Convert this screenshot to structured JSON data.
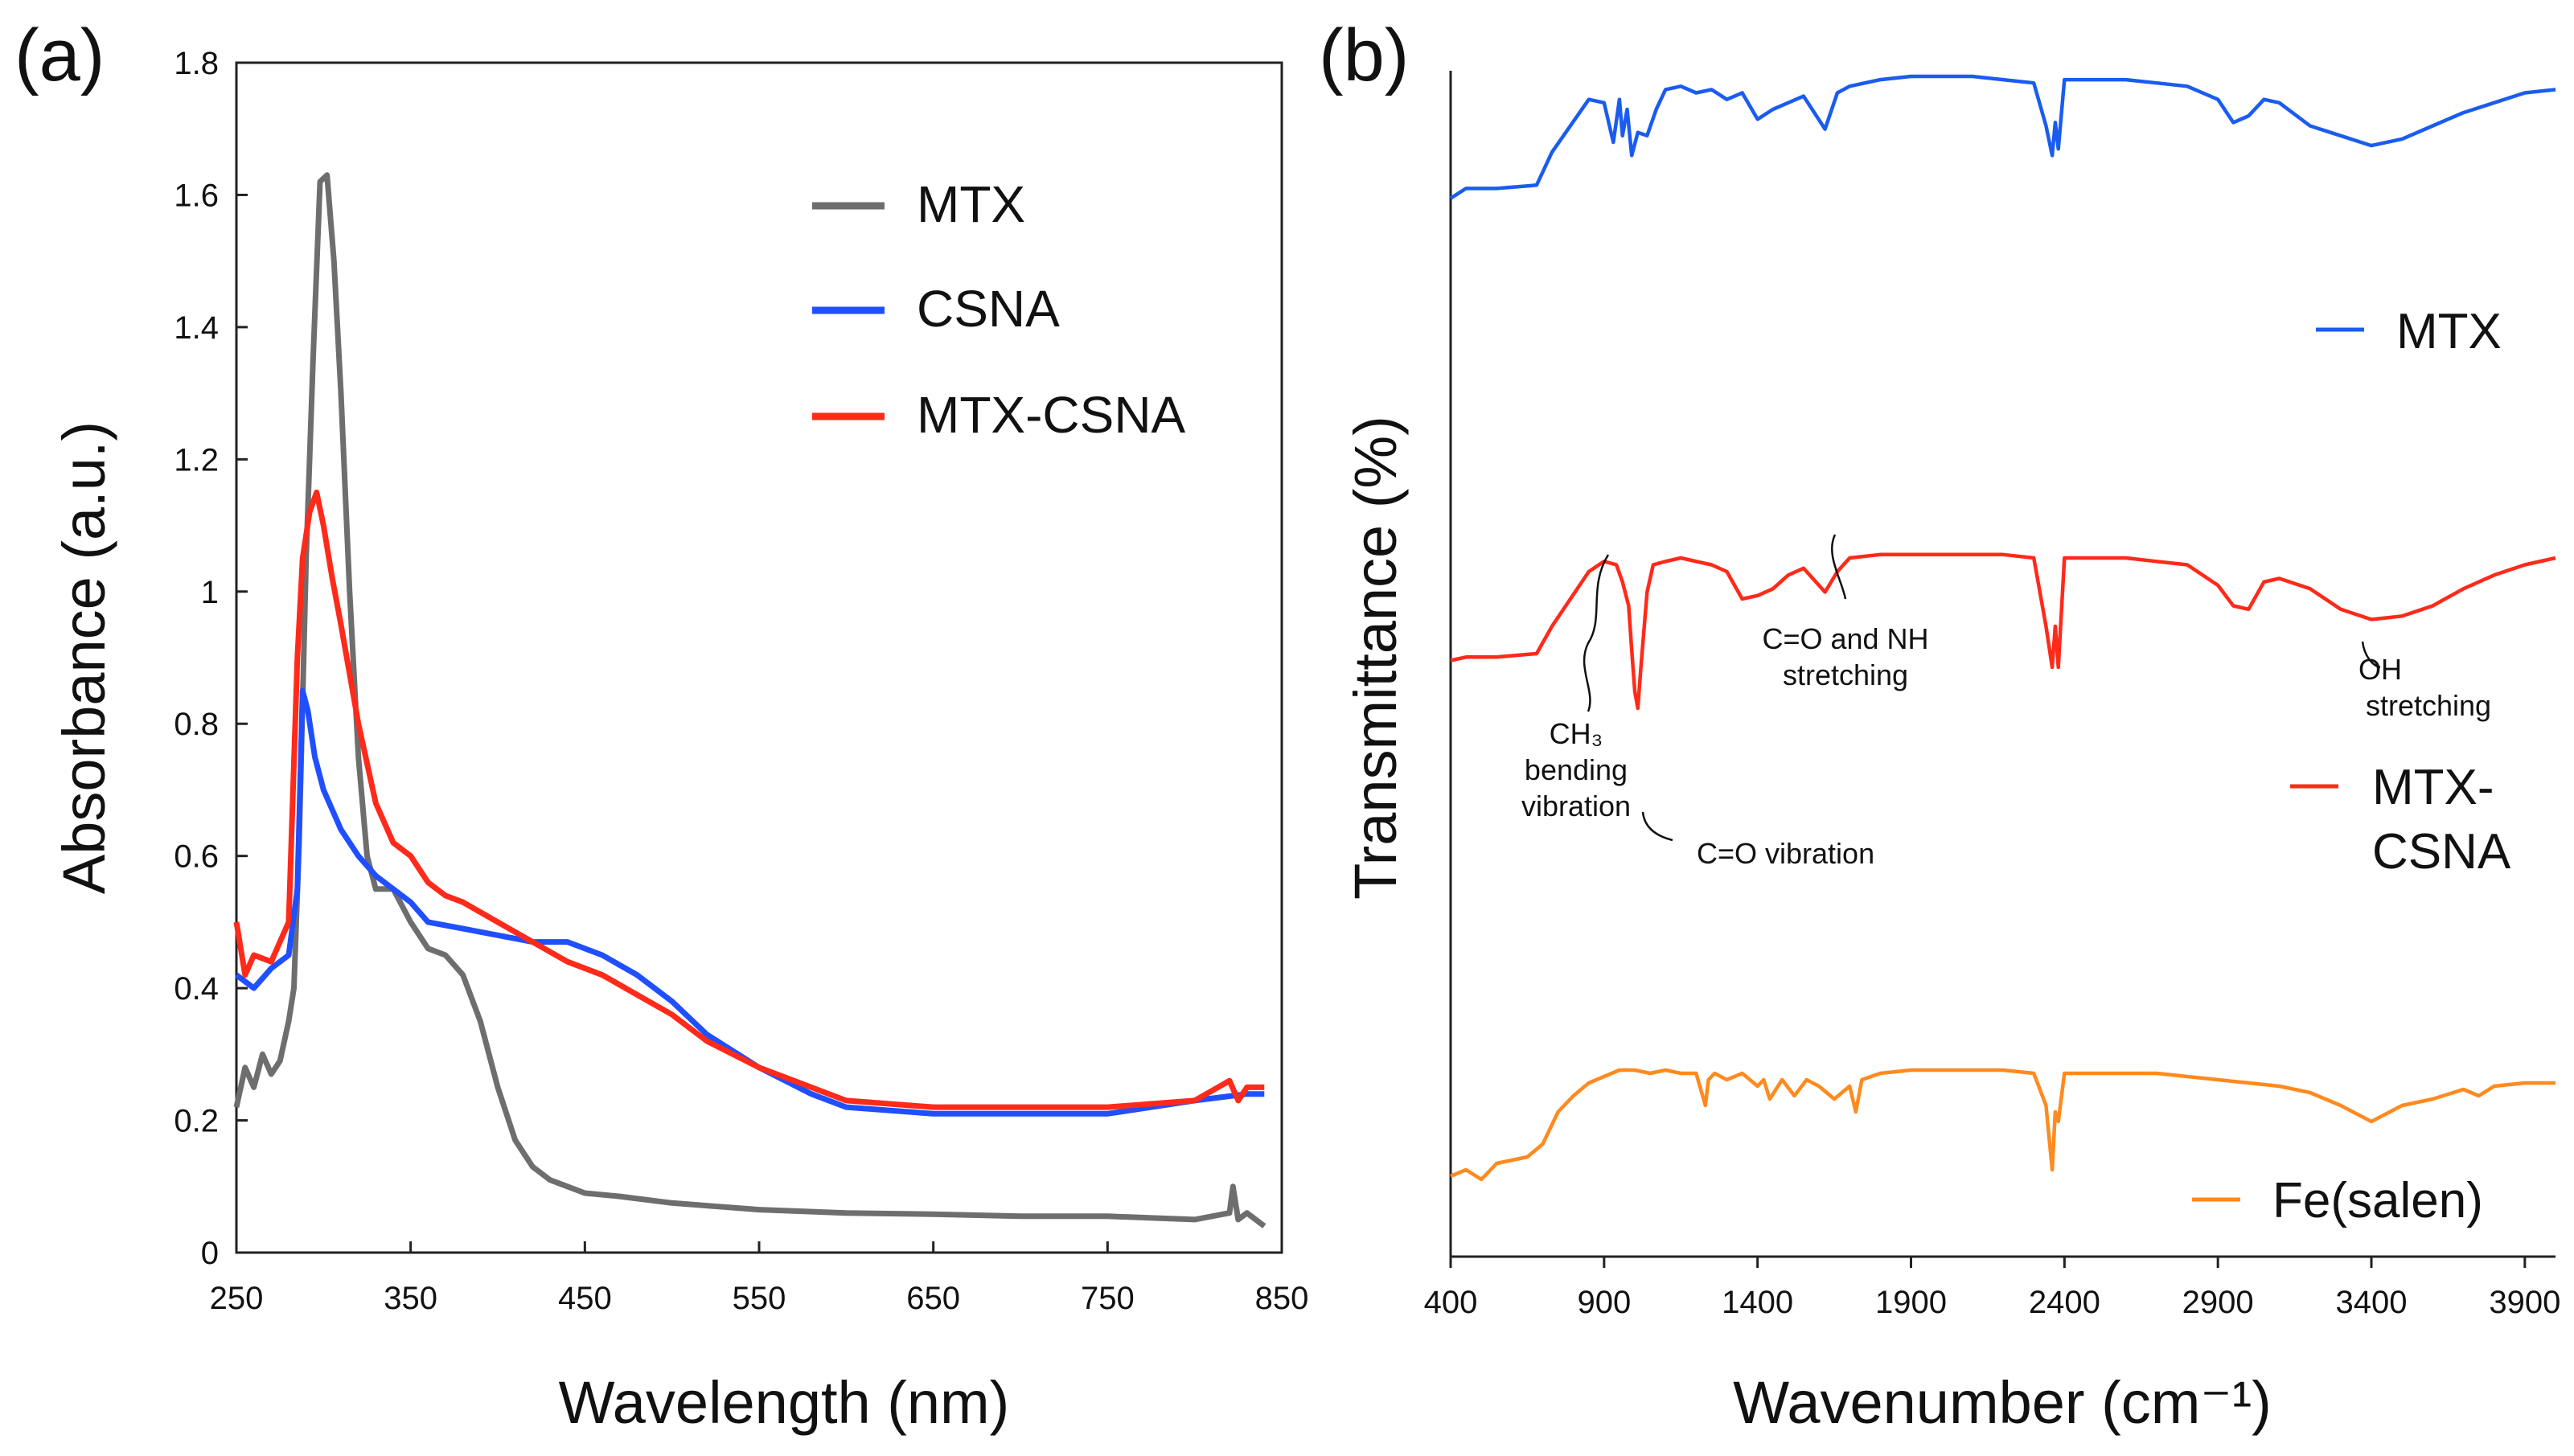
{
  "chart_data": [
    {
      "type": "line",
      "panel_label": "(a)",
      "xlabel": "Wavelength (nm)",
      "ylabel": "Absorbance (a.u.)",
      "xlim": [
        250,
        850
      ],
      "ylim": [
        0,
        1.8
      ],
      "x_ticks": [
        "250",
        "350",
        "450",
        "550",
        "650",
        "750",
        "850"
      ],
      "y_ticks": [
        "0",
        "0.2",
        "0.4",
        "0.6",
        "0.8",
        "1",
        "1.2",
        "1.4",
        "1.6",
        "1.8"
      ],
      "legend_position": "top-right",
      "series": [
        {
          "name": "MTX",
          "color": "#6e6e6e",
          "x": [
            250,
            255,
            260,
            265,
            270,
            275,
            280,
            283,
            286,
            290,
            294,
            298,
            302,
            306,
            310,
            315,
            320,
            325,
            330,
            340,
            350,
            360,
            370,
            380,
            390,
            400,
            410,
            420,
            430,
            440,
            450,
            470,
            500,
            550,
            600,
            650,
            700,
            750,
            800,
            820,
            822,
            825,
            830,
            840
          ],
          "y": [
            0.22,
            0.28,
            0.25,
            0.3,
            0.27,
            0.29,
            0.35,
            0.4,
            0.62,
            1.05,
            1.35,
            1.62,
            1.63,
            1.5,
            1.3,
            1.0,
            0.75,
            0.6,
            0.55,
            0.55,
            0.5,
            0.46,
            0.45,
            0.42,
            0.35,
            0.25,
            0.17,
            0.13,
            0.11,
            0.1,
            0.09,
            0.085,
            0.075,
            0.065,
            0.06,
            0.058,
            0.055,
            0.055,
            0.05,
            0.06,
            0.1,
            0.05,
            0.06,
            0.04
          ]
        },
        {
          "name": "CSNA",
          "color": "#1f4fff",
          "x": [
            250,
            260,
            270,
            280,
            285,
            288,
            291,
            295,
            300,
            310,
            320,
            330,
            340,
            350,
            360,
            380,
            400,
            420,
            440,
            460,
            480,
            500,
            520,
            550,
            580,
            600,
            650,
            700,
            750,
            800,
            830,
            840
          ],
          "y": [
            0.42,
            0.4,
            0.43,
            0.45,
            0.55,
            0.85,
            0.82,
            0.75,
            0.7,
            0.64,
            0.6,
            0.57,
            0.55,
            0.53,
            0.5,
            0.49,
            0.48,
            0.47,
            0.47,
            0.45,
            0.42,
            0.38,
            0.33,
            0.28,
            0.24,
            0.22,
            0.21,
            0.21,
            0.21,
            0.23,
            0.24,
            0.24
          ]
        },
        {
          "name": "MTX-CSNA",
          "color": "#ff2a1a",
          "x": [
            250,
            255,
            260,
            270,
            280,
            285,
            288,
            292,
            296,
            300,
            305,
            310,
            320,
            330,
            340,
            350,
            360,
            370,
            380,
            400,
            420,
            440,
            460,
            480,
            500,
            520,
            550,
            580,
            600,
            650,
            700,
            750,
            800,
            820,
            825,
            830,
            840
          ],
          "y": [
            0.5,
            0.42,
            0.45,
            0.44,
            0.5,
            0.9,
            1.05,
            1.12,
            1.15,
            1.1,
            1.02,
            0.95,
            0.8,
            0.68,
            0.62,
            0.6,
            0.56,
            0.54,
            0.53,
            0.5,
            0.47,
            0.44,
            0.42,
            0.39,
            0.36,
            0.32,
            0.28,
            0.25,
            0.23,
            0.22,
            0.22,
            0.22,
            0.23,
            0.26,
            0.23,
            0.25,
            0.25
          ]
        }
      ]
    },
    {
      "type": "line",
      "panel_label": "(b)",
      "xlabel": "Wavenumber (cm⁻¹)",
      "ylabel": "Transmittance (%)",
      "xlim": [
        400,
        4000
      ],
      "ylim": [
        0,
        100
      ],
      "x_ticks": [
        "400",
        "900",
        "1400",
        "1900",
        "2400",
        "2900",
        "3400",
        "3900"
      ],
      "legend_position": "right",
      "series": [
        {
          "name": "MTX",
          "color": "#1a5cf0",
          "x": [
            400,
            450,
            550,
            680,
            730,
            850,
            900,
            930,
            950,
            960,
            975,
            990,
            1010,
            1040,
            1070,
            1100,
            1150,
            1200,
            1250,
            1300,
            1350,
            1400,
            1450,
            1500,
            1550,
            1620,
            1660,
            1700,
            1800,
            1900,
            2000,
            2100,
            2200,
            2300,
            2340,
            2360,
            2370,
            2380,
            2400,
            2500,
            2600,
            2700,
            2800,
            2900,
            2950,
            3000,
            3050,
            3100,
            3200,
            3300,
            3400,
            3500,
            3600,
            3700,
            3800,
            3900,
            4000
          ],
          "y": [
            63,
            66,
            66,
            67,
            77,
            93,
            92,
            80,
            93,
            82,
            90,
            76,
            83,
            82,
            90,
            96,
            97,
            95,
            96,
            93,
            95,
            87,
            90,
            92,
            94,
            84,
            95,
            97,
            99,
            100,
            100,
            100,
            99,
            98,
            85,
            76,
            86,
            78,
            99,
            99,
            99,
            98,
            97,
            93,
            86,
            88,
            93,
            92,
            85,
            82,
            79,
            81,
            85,
            89,
            92,
            95,
            96
          ]
        },
        {
          "name": "MTX-CSNA",
          "color": "#ff2a1a",
          "x": [
            400,
            450,
            550,
            680,
            730,
            850,
            900,
            940,
            960,
            980,
            990,
            1000,
            1010,
            1020,
            1040,
            1060,
            1100,
            1150,
            1200,
            1250,
            1300,
            1350,
            1400,
            1450,
            1500,
            1550,
            1620,
            1660,
            1700,
            1800,
            1900,
            2000,
            2100,
            2200,
            2300,
            2340,
            2360,
            2370,
            2380,
            2400,
            2500,
            2600,
            2700,
            2800,
            2900,
            2950,
            3000,
            3050,
            3100,
            3200,
            3300,
            3400,
            3500,
            3600,
            3700,
            3800,
            3900,
            4000
          ],
          "y": [
            42,
            43,
            43,
            44,
            52,
            68,
            71,
            70,
            65,
            58,
            45,
            33,
            28,
            40,
            62,
            70,
            71,
            72,
            71,
            70,
            68,
            60,
            61,
            63,
            67,
            69,
            62,
            68,
            72,
            73,
            73,
            73,
            73,
            73,
            72,
            52,
            40,
            52,
            40,
            72,
            72,
            72,
            71,
            70,
            64,
            58,
            57,
            65,
            66,
            63,
            57,
            54,
            55,
            58,
            63,
            67,
            70,
            72
          ]
        },
        {
          "name": "Fe(salen)",
          "color": "#ff8a1e",
          "x": [
            400,
            450,
            500,
            550,
            600,
            650,
            700,
            750,
            800,
            850,
            900,
            950,
            1000,
            1050,
            1100,
            1150,
            1200,
            1230,
            1240,
            1260,
            1300,
            1350,
            1400,
            1420,
            1440,
            1480,
            1520,
            1560,
            1600,
            1650,
            1700,
            1720,
            1740,
            1800,
            1900,
            2000,
            2100,
            2200,
            2300,
            2340,
            2360,
            2370,
            2380,
            2400,
            2500,
            2600,
            2700,
            2800,
            2900,
            3000,
            3100,
            3200,
            3300,
            3400,
            3500,
            3600,
            3700,
            3750,
            3800,
            3900,
            4000
          ],
          "y": [
            8,
            10,
            7,
            12,
            13,
            14,
            18,
            28,
            33,
            37,
            39,
            41,
            41,
            40,
            41,
            40,
            40,
            30,
            38,
            40,
            38,
            40,
            36,
            38,
            32,
            38,
            33,
            38,
            36,
            32,
            36,
            28,
            38,
            40,
            41,
            41,
            41,
            41,
            40,
            30,
            10,
            28,
            25,
            40,
            40,
            40,
            40,
            39,
            38,
            37,
            36,
            34,
            30,
            25,
            30,
            32,
            35,
            33,
            36,
            37,
            37
          ]
        }
      ],
      "annotations": {
        "ch3": [
          "CH₃",
          "bending",
          "vibration"
        ],
        "co_vibration": [
          "C=O vibration"
        ],
        "co_nh": [
          "C=O and NH",
          "stretching"
        ],
        "oh": [
          "OH",
          "stretching"
        ]
      },
      "legend_labels": {
        "mtx": [
          "MTX"
        ],
        "mtx_csna": [
          "MTX-",
          "CSNA"
        ],
        "fe": [
          "Fe(salen)"
        ]
      }
    }
  ]
}
